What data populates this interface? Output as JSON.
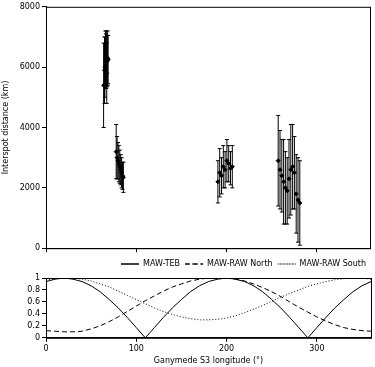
{
  "chart_data": [
    {
      "type": "scatter",
      "y_label": "Interspot distance (km)",
      "xlim": [
        0,
        360
      ],
      "xticks": [
        0,
        100,
        200,
        300
      ],
      "ylim": [
        0,
        8000
      ],
      "yticks": [
        0,
        2000,
        4000,
        6000,
        8000
      ],
      "tick_labels": "y",
      "marker": "diamond",
      "color": "#000000",
      "x": [
        64,
        65,
        65.5,
        66,
        66.5,
        67,
        67.5,
        68,
        68.5,
        69,
        78,
        79,
        80,
        81,
        82,
        83,
        84,
        85,
        86,
        191,
        193,
        195,
        197,
        199,
        201,
        203,
        205,
        207,
        258,
        260,
        262,
        264,
        266,
        268,
        270,
        272,
        274,
        276,
        278,
        280,
        282
      ],
      "values": [
        5400,
        5900,
        6000,
        6300,
        6200,
        6250,
        5800,
        6200,
        6300,
        6250,
        3200,
        3000,
        2900,
        2800,
        2700,
        2600,
        2500,
        2400,
        2350,
        2200,
        2500,
        2400,
        2700,
        2600,
        2900,
        2800,
        2650,
        2700,
        2900,
        2600,
        2400,
        2200,
        2000,
        1900,
        2300,
        2600,
        2700,
        2500,
        1800,
        1600,
        1500
      ],
      "errors": [
        1400,
        1100,
        1000,
        900,
        900,
        950,
        1000,
        850,
        900,
        800,
        900,
        700,
        600,
        600,
        550,
        500,
        500,
        450,
        500,
        700,
        800,
        600,
        700,
        600,
        700,
        600,
        550,
        700,
        1500,
        1300,
        1200,
        1400,
        1200,
        1100,
        1300,
        1500,
        1400,
        1200,
        1300,
        1400,
        1400
      ]
    },
    {
      "type": "line",
      "x_label": "Ganymede S3 longitude (°)",
      "xlim": [
        0,
        360
      ],
      "xticks": [
        0,
        100,
        200,
        300
      ],
      "ylim": [
        0,
        1
      ],
      "yticks": [
        0,
        0.2,
        0.4,
        0.6,
        0.8,
        1
      ],
      "legend": "upper right",
      "x": [
        0,
        10,
        20,
        30,
        40,
        50,
        60,
        70,
        80,
        90,
        100,
        110,
        120,
        130,
        140,
        150,
        160,
        170,
        180,
        190,
        200,
        210,
        220,
        230,
        240,
        250,
        260,
        270,
        280,
        290,
        300,
        310,
        320,
        330,
        340,
        350,
        360
      ],
      "series": [
        {
          "name": "MAW-TEB",
          "color": "#000000",
          "line_style": "solid",
          "values": [
            0.94,
            0.98,
            1,
            0.98,
            0.94,
            0.87,
            0.77,
            0.64,
            0.5,
            0.34,
            0.17,
            0,
            0.17,
            0.34,
            0.5,
            0.64,
            0.77,
            0.87,
            0.94,
            0.98,
            1,
            0.98,
            0.94,
            0.87,
            0.77,
            0.64,
            0.5,
            0.34,
            0.17,
            0,
            0.17,
            0.34,
            0.5,
            0.64,
            0.77,
            0.87,
            0.94
          ]
        },
        {
          "name": "MAW-RAW North",
          "color": "#000000",
          "line_style": "dashed",
          "values": [
            0.12,
            0.11,
            0.1,
            0.1,
            0.11,
            0.15,
            0.2,
            0.27,
            0.35,
            0.44,
            0.53,
            0.62,
            0.7,
            0.78,
            0.85,
            0.9,
            0.95,
            0.98,
            1,
            1,
            1,
            0.98,
            0.95,
            0.9,
            0.84,
            0.77,
            0.69,
            0.6,
            0.51,
            0.43,
            0.35,
            0.28,
            0.22,
            0.17,
            0.14,
            0.12,
            0.11
          ]
        },
        {
          "name": "MAW-RAW South",
          "color": "#000000",
          "line_style": "dotted",
          "values": [
            0.97,
            0.99,
            1,
            1,
            0.98,
            0.95,
            0.9,
            0.85,
            0.78,
            0.71,
            0.64,
            0.57,
            0.5,
            0.44,
            0.39,
            0.35,
            0.32,
            0.3,
            0.3,
            0.31,
            0.33,
            0.37,
            0.42,
            0.48,
            0.54,
            0.61,
            0.68,
            0.74,
            0.8,
            0.86,
            0.9,
            0.94,
            0.97,
            0.99,
            1,
            1,
            0.98
          ]
        }
      ]
    }
  ]
}
